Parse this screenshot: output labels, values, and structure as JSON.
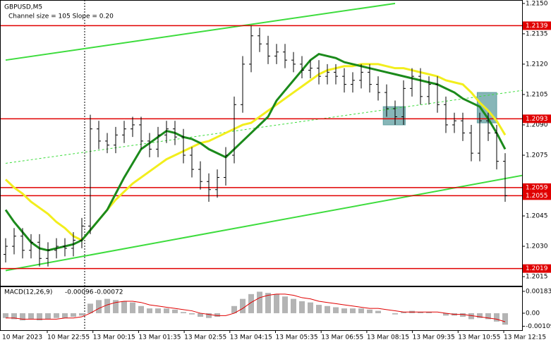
{
  "chart_data": {
    "type": "candlestick",
    "title": "GBPUSD,M5",
    "subtitle": "Channel size = 105 Slope = 0.20",
    "xlabels": [
      "10 Mar 2023",
      "10 Mar 22:55",
      "13 Mar 00:15",
      "13 Mar 01:35",
      "13 Mar 02:55",
      "13 Mar 04:15",
      "13 Mar 05:35",
      "13 Mar 06:55",
      "13 Mar 08:15",
      "13 Mar 09:35",
      "13 Mar 10:55",
      "13 Mar 12:15"
    ],
    "open": [
      1.2026,
      1.203,
      1.2035,
      1.2028,
      1.2032,
      1.2024,
      1.2028,
      1.203,
      1.2029,
      1.2033,
      1.204,
      1.2088,
      1.2082,
      1.208,
      1.2085,
      1.2088,
      1.209,
      1.2082,
      1.2078,
      1.2085,
      1.2088,
      1.2084,
      1.2075,
      1.2068,
      1.2062,
      1.2058,
      1.2064,
      1.2075,
      1.21,
      1.212,
      1.2134,
      1.213,
      1.2124,
      1.2126,
      1.2122,
      1.212,
      1.2117,
      1.2118,
      1.2114,
      1.2116,
      1.2114,
      1.211,
      1.2112,
      1.2116,
      1.211,
      1.2106,
      1.2098,
      1.2094,
      1.2108,
      1.2114,
      1.2104,
      1.211,
      1.21,
      1.209,
      1.2092,
      1.2086,
      1.2076,
      1.2092,
      1.2086,
      1.2072
    ],
    "high": [
      1.2034,
      1.2039,
      1.2039,
      1.2036,
      1.2036,
      1.2032,
      1.2034,
      1.2034,
      1.2037,
      1.2044,
      1.2095,
      1.2092,
      1.2086,
      1.2089,
      1.2092,
      1.2094,
      1.2094,
      1.2086,
      1.2089,
      1.2092,
      1.2092,
      1.2088,
      1.2079,
      1.2072,
      1.2066,
      1.2068,
      1.2079,
      1.2104,
      1.2124,
      1.2139,
      1.2138,
      1.2134,
      1.213,
      1.213,
      1.2126,
      1.2124,
      1.2122,
      1.2122,
      1.212,
      1.212,
      1.2118,
      1.2116,
      1.212,
      1.212,
      1.2114,
      1.211,
      1.2102,
      1.2112,
      1.2118,
      1.2118,
      1.2114,
      1.2114,
      1.2104,
      1.2096,
      1.2096,
      1.209,
      1.2096,
      1.2096,
      1.209,
      1.2076
    ],
    "low": [
      1.2022,
      1.2026,
      1.2024,
      1.2024,
      1.202,
      1.202,
      1.2024,
      1.2025,
      1.2025,
      1.2029,
      1.2036,
      1.2078,
      1.2076,
      1.2076,
      1.2081,
      1.2084,
      1.2078,
      1.2074,
      1.2074,
      1.2081,
      1.208,
      1.2071,
      1.2064,
      1.2058,
      1.2052,
      1.2054,
      1.206,
      1.2071,
      1.2096,
      1.2116,
      1.2126,
      1.212,
      1.212,
      1.2118,
      1.2116,
      1.2113,
      1.2113,
      1.211,
      1.211,
      1.211,
      1.2106,
      1.2106,
      1.2108,
      1.2106,
      1.2102,
      1.2094,
      1.209,
      1.209,
      1.2104,
      1.21,
      1.21,
      1.2096,
      1.2086,
      1.2086,
      1.2082,
      1.2072,
      1.2072,
      1.2082,
      1.2068,
      1.2052
    ],
    "close": [
      1.203,
      1.2035,
      1.2028,
      1.2032,
      1.2024,
      1.2028,
      1.203,
      1.2029,
      1.2033,
      1.204,
      1.2088,
      1.2082,
      1.208,
      1.2085,
      1.2088,
      1.209,
      1.2082,
      1.2078,
      1.2085,
      1.2088,
      1.2084,
      1.2075,
      1.2068,
      1.2062,
      1.2058,
      1.2064,
      1.2075,
      1.21,
      1.212,
      1.2134,
      1.213,
      1.2124,
      1.2126,
      1.2122,
      1.212,
      1.2117,
      1.2118,
      1.2114,
      1.2116,
      1.2114,
      1.211,
      1.2112,
      1.2116,
      1.211,
      1.2106,
      1.2098,
      1.2094,
      1.2108,
      1.2114,
      1.2104,
      1.211,
      1.21,
      1.209,
      1.2092,
      1.2086,
      1.2076,
      1.2092,
      1.2086,
      1.2072,
      1.2055
    ],
    "color": "#000000",
    "moving_averages": [
      {
        "color": "#f2ee1d",
        "values": [
          1.2063,
          1.2059,
          1.2056,
          1.2052,
          1.2049,
          1.2046,
          1.2042,
          1.2039,
          1.2035,
          1.2033,
          1.2038,
          1.2043,
          1.2048,
          1.2053,
          1.2057,
          1.2061,
          1.2064,
          1.2067,
          1.207,
          1.2073,
          1.2075,
          1.2077,
          1.2079,
          1.2081,
          1.2082,
          1.2084,
          1.2086,
          1.2088,
          1.209,
          1.2091,
          1.2094,
          1.2097,
          1.21,
          1.2103,
          1.2106,
          1.2109,
          1.2112,
          1.2115,
          1.2117,
          1.2118,
          1.2119,
          1.2119,
          1.212,
          1.212,
          1.212,
          1.2119,
          1.2118,
          1.2118,
          1.2117,
          1.2116,
          1.2115,
          1.2114,
          1.2112,
          1.2111,
          1.211,
          1.2106,
          1.2101,
          1.2097,
          1.2092,
          1.2085
        ]
      },
      {
        "color": "#1b8a1b",
        "values": [
          1.2048,
          1.2042,
          1.2037,
          1.2032,
          1.2029,
          1.2028,
          1.2029,
          1.203,
          1.2031,
          1.2033,
          1.2038,
          1.2043,
          1.2048,
          1.2056,
          1.2064,
          1.2071,
          1.2078,
          1.2081,
          1.2084,
          1.2087,
          1.2086,
          1.2084,
          1.2083,
          1.2081,
          1.2078,
          1.2076,
          1.2074,
          1.2078,
          1.2082,
          1.2086,
          1.209,
          1.2094,
          1.2102,
          1.2107,
          1.2112,
          1.2117,
          1.2122,
          1.2125,
          1.2124,
          1.2123,
          1.2121,
          1.212,
          1.2119,
          1.2118,
          1.2117,
          1.2116,
          1.2115,
          1.2114,
          1.2113,
          1.2112,
          1.2111,
          1.211,
          1.2108,
          1.2106,
          1.2103,
          1.2101,
          1.2099,
          1.2093,
          1.2086,
          1.2078
        ]
      }
    ],
    "levels": [
      1.2139,
      1.2093,
      1.2059,
      1.2055,
      1.2019
    ],
    "level_color": "#e00000",
    "trendlines": [
      {
        "color": "#3ddc3d",
        "dash": false,
        "points": [
          [
            0,
            1.2122
          ],
          [
            46,
            1.215
          ]
        ]
      },
      {
        "color": "#3ddc3d",
        "dash": false,
        "points": [
          [
            0,
            1.2018
          ],
          [
            61,
            1.2065
          ]
        ]
      },
      {
        "color": "#3ddc3d",
        "dash": true,
        "points": [
          [
            0,
            1.2071
          ],
          [
            61,
            1.2107
          ]
        ]
      }
    ],
    "zones": [
      {
        "color": "#5f9ea0",
        "x": [
          44.6,
          47.2
        ],
        "price": [
          1.209,
          1.2099
        ]
      },
      {
        "color": "#5f9ea0",
        "x": [
          55.7,
          58
        ],
        "price": [
          1.2091,
          1.2106
        ]
      }
    ],
    "ylim": [
      1.20105,
      1.21517
    ],
    "yticks": [
      {
        "value": 1.215,
        "label": "1.2150"
      },
      1.2135,
      {
        "value": 1.212,
        "label": "1.2120"
      },
      1.2105,
      {
        "value": 1.209,
        "label": "1.2090"
      },
      1.2075,
      1.2045,
      {
        "value": 1.203,
        "label": "1.2030"
      },
      1.2015
    ],
    "macd": {
      "name": "MACD(12,26,9)",
      "histogram_color": "#b4b4b4",
      "signal_color": "#e00000",
      "histogram": [
        -0.0004,
        -0.0005,
        -0.0006,
        -0.0005,
        -0.0006,
        -0.0005,
        -0.0004,
        -0.0004,
        -0.0003,
        -0.0002,
        0.0008,
        0.0011,
        0.0012,
        0.0011,
        0.001,
        0.0009,
        0.0006,
        0.0004,
        0.0004,
        0.0004,
        0.0003,
        0.0001,
        -0.0001,
        -0.0003,
        -0.0004,
        -0.0003,
        0,
        0.0006,
        0.0012,
        0.0016,
        0.0018,
        0.0017,
        0.0016,
        0.0014,
        0.0012,
        0.001,
        0.0009,
        0.0007,
        0.0006,
        0.0005,
        0.0004,
        0.0004,
        0.0004,
        0.0003,
        0.0002,
        0,
        -0.0001,
        0.0001,
        0.0002,
        0.0001,
        0.0001,
        0,
        -0.0002,
        -0.0002,
        -0.0003,
        -0.0005,
        -0.0004,
        -0.0005,
        -0.0007,
        -0.00096
      ],
      "signal": [
        -0.0004,
        -0.0004,
        -0.0005,
        -0.0005,
        -0.0005,
        -0.0005,
        -0.0005,
        -0.0004,
        -0.0004,
        -0.0003,
        0,
        0.0004,
        0.0007,
        0.0009,
        0.001,
        0.001,
        0.0009,
        0.0007,
        0.0006,
        0.0005,
        0.0004,
        0.0003,
        0.0002,
        0,
        -0.0001,
        -0.0002,
        -0.0002,
        0,
        0.0004,
        0.0009,
        0.0013,
        0.0015,
        0.0016,
        0.0016,
        0.0015,
        0.0013,
        0.0012,
        0.001,
        0.0009,
        0.0008,
        0.0007,
        0.0006,
        0.0005,
        0.0004,
        0.0004,
        0.0003,
        0.0002,
        0.0001,
        0.0001,
        0.0001,
        0.0001,
        0.0001,
        0,
        -0.0001,
        -0.0001,
        -0.0002,
        -0.0003,
        -0.0004,
        -0.0005,
        -0.00072
      ],
      "ylim": [
        -0.00142,
        0.00224
      ],
      "yticks": [
        0.00183,
        {
          "value": 0,
          "label": "0.00"
        },
        -0.00109
      ]
    }
  }
}
